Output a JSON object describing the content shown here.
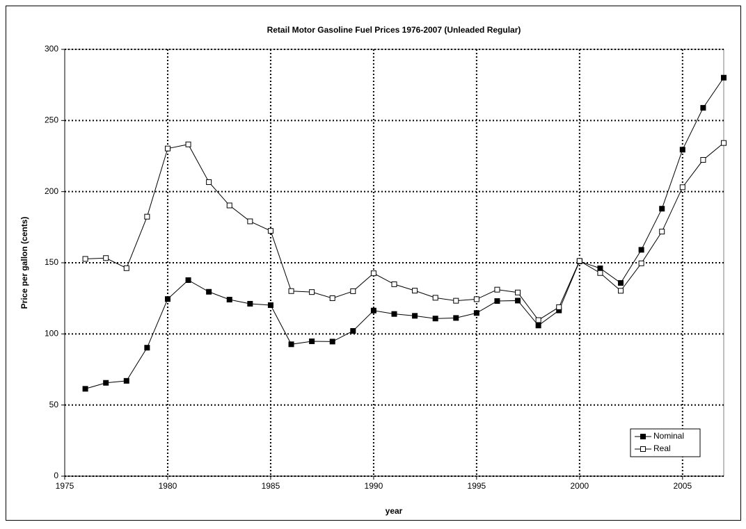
{
  "chart_data": {
    "type": "line",
    "title": "Retail Motor Gasoline Fuel Prices 1976-2007 (Unleaded Regular)",
    "x_label": "year",
    "y_label": "Price per gallon (cents)",
    "x": [
      1976,
      1977,
      1978,
      1979,
      1980,
      1981,
      1982,
      1983,
      1984,
      1985,
      1986,
      1987,
      1988,
      1989,
      1990,
      1991,
      1992,
      1993,
      1994,
      1995,
      1996,
      1997,
      1998,
      1999,
      2000,
      2001,
      2002,
      2003,
      2004,
      2005,
      2006,
      2007
    ],
    "series": [
      {
        "name": "Nominal",
        "color": "#000000",
        "marker_fill": "#000000",
        "values": [
          61.4,
          65.6,
          67.0,
          90.3,
          124.5,
          137.8,
          129.6,
          124.1,
          121.2,
          120.2,
          92.7,
          94.8,
          94.6,
          102.1,
          116.4,
          114.0,
          112.7,
          110.8,
          111.2,
          114.7,
          123.1,
          123.4,
          105.9,
          116.5,
          151.0,
          146.1,
          135.8,
          159.1,
          188.0,
          229.5,
          258.9,
          280.1
        ]
      },
      {
        "name": "Real",
        "color": "#000000",
        "marker_fill": "#ffffff",
        "values": [
          152.7,
          153.3,
          146.2,
          182.4,
          230.3,
          233.2,
          206.7,
          190.3,
          179.1,
          172.4,
          130.1,
          129.4,
          125.1,
          130.0,
          142.6,
          134.9,
          130.4,
          125.4,
          123.3,
          124.4,
          131.1,
          129.1,
          109.7,
          118.8,
          151.3,
          142.8,
          130.3,
          149.6,
          171.9,
          203.1,
          222.3,
          234.2
        ]
      }
    ],
    "xlim": [
      1975,
      2007
    ],
    "xticks": [
      1975,
      1980,
      1985,
      1990,
      1995,
      2000,
      2005
    ],
    "ylim": [
      0,
      300
    ],
    "yticks": [
      0,
      50,
      100,
      150,
      200,
      250,
      300
    ],
    "grid": true,
    "legend": "lower right"
  }
}
